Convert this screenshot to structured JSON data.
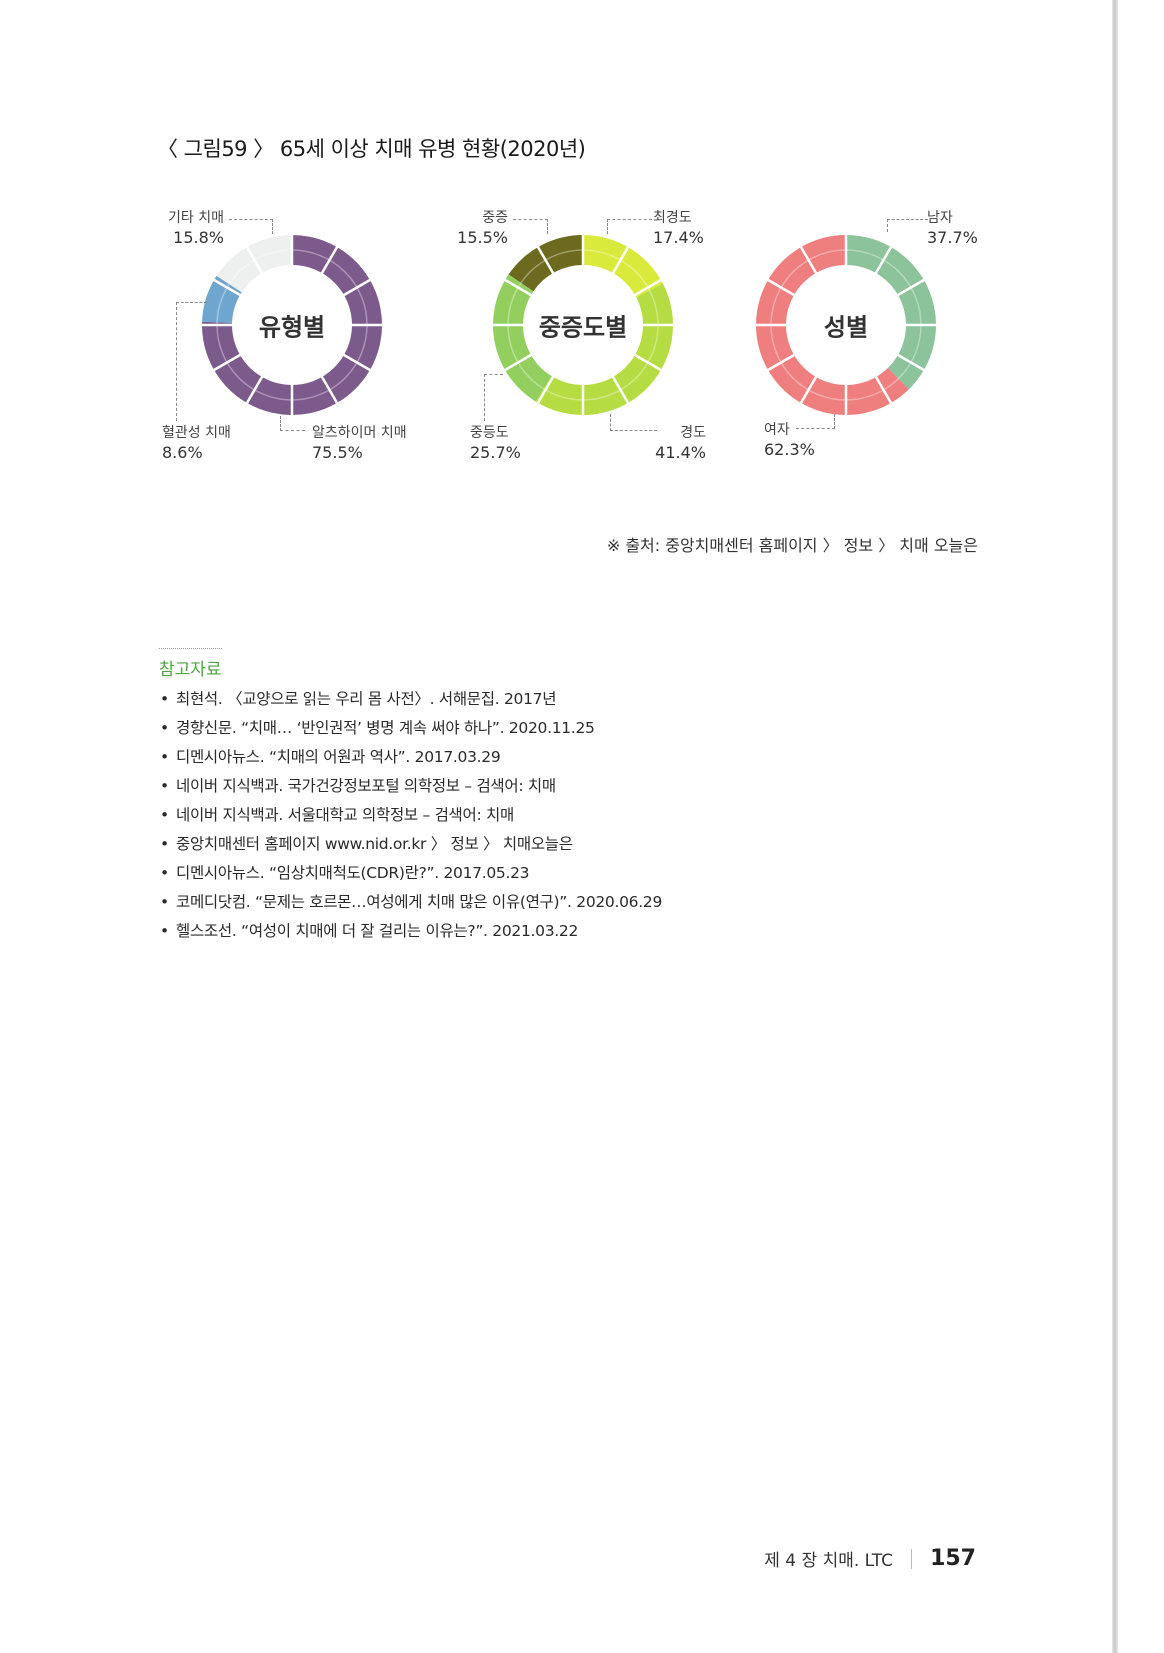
{
  "figure_title": "〈 그림59 〉 65세 이상 치매 유병 현황(2020년)",
  "chart_data": [
    {
      "type": "pie",
      "center_label": "유형별",
      "segments": [
        {
          "name": "알츠하이머 치매",
          "value": 75.5,
          "value_label": "75.5%",
          "color": "#7d5a8c"
        },
        {
          "name": "혈관성 치매",
          "value": 8.6,
          "value_label": "8.6%",
          "color": "#6fa6cf"
        },
        {
          "name": "기타 치매",
          "value": 15.8,
          "value_label": "15.8%",
          "color": "#eef0f0"
        }
      ]
    },
    {
      "type": "pie",
      "center_label": "중증도별",
      "segments": [
        {
          "name": "최경도",
          "value": 17.4,
          "value_label": "17.4%",
          "color": "#d9ea3c"
        },
        {
          "name": "경도",
          "value": 41.4,
          "value_label": "41.4%",
          "color": "#b5dc43"
        },
        {
          "name": "중등도",
          "value": 25.7,
          "value_label": "25.7%",
          "color": "#93cf5f"
        },
        {
          "name": "중증",
          "value": 15.5,
          "value_label": "15.5%",
          "color": "#6b6a1f"
        }
      ]
    },
    {
      "type": "pie",
      "center_label": "성별",
      "segments": [
        {
          "name": "남자",
          "value": 37.7,
          "value_label": "37.7%",
          "color": "#8cc39a"
        },
        {
          "name": "여자",
          "value": 62.3,
          "value_label": "62.3%",
          "color": "#ef7f7f"
        }
      ]
    }
  ],
  "source": "※ 출처: 중앙치매센터 홈페이지 〉 정보 〉 치매 오늘은",
  "references_title": "참고자료",
  "references": [
    "최현석. 〈교양으로 읽는 우리 몸 사전〉. 서해문집. 2017년",
    "경향신문. “치매… ‘반인권적’ 병명 계속 써야 하나”. 2020.11.25",
    "디멘시아뉴스. “치매의 어원과 역사”. 2017.03.29",
    "네이버 지식백과. 국가건강정보포털 의학정보 – 검색어: 치매",
    "네이버 지식백과. 서울대학교 의학정보 – 검색어: 치매",
    "중앙치매센터 홈페이지 www.nid.or.kr 〉 정보 〉 치매오늘은",
    "디멘시아뉴스. “임상치매척도(CDR)란?”. 2017.05.23",
    "코메디닷컴. “문제는 호르몬…여성에게 치매 많은 이유(연구)”. 2020.06.29",
    "헬스조선. “여성이 치매에 더 잘 걸리는 이유는?”. 2021.03.22"
  ],
  "footer": {
    "chapter": "제 4 장  치매. LTC",
    "page_number": "157"
  }
}
